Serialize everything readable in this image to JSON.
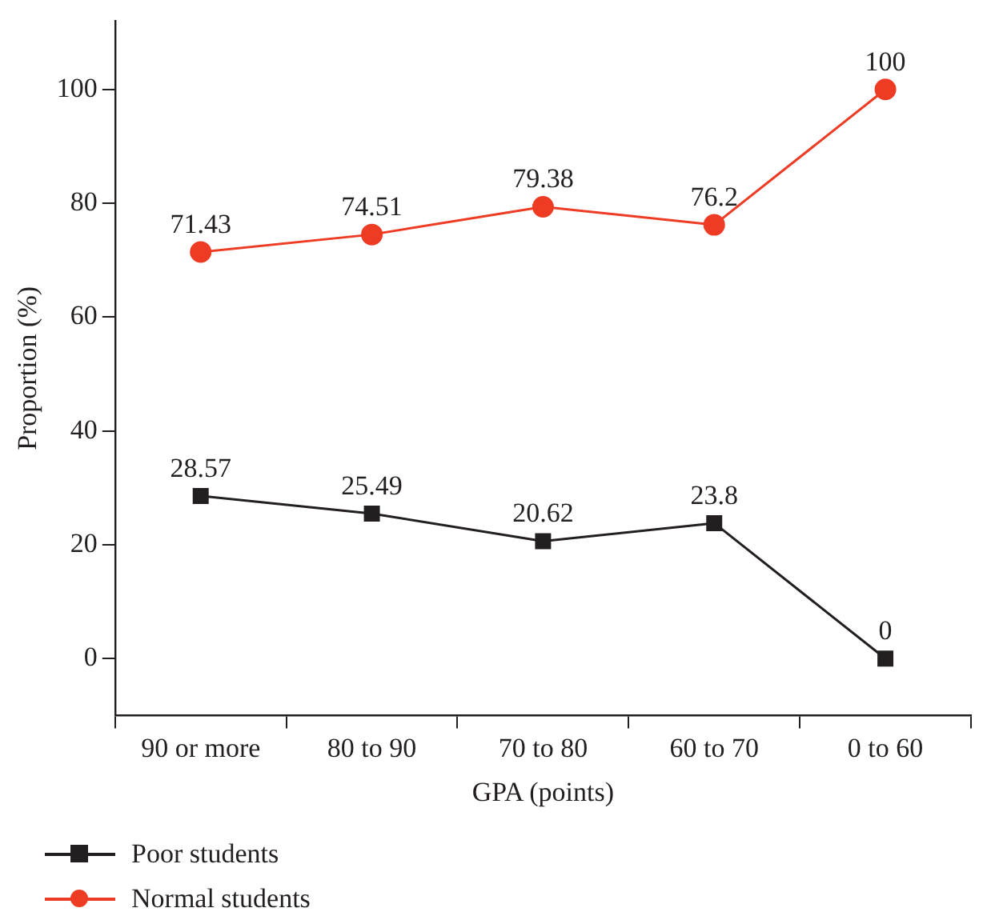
{
  "chart_data": {
    "type": "line",
    "xlabel": "GPA (points)",
    "ylabel": "Proportion (%)",
    "categories": [
      "90 or more",
      "80 to 90",
      "70 to 80",
      "60 to 70",
      "0 to 60"
    ],
    "series": [
      {
        "name": "Poor students",
        "color": "#231f20",
        "marker": "square",
        "values": [
          28.57,
          25.49,
          20.62,
          23.8,
          0
        ]
      },
      {
        "name": "Normal students",
        "color": "#ee3b24",
        "marker": "circle",
        "values": [
          71.43,
          74.51,
          79.38,
          76.2,
          100
        ]
      }
    ],
    "ylim": [
      -10,
      112
    ],
    "yticks": [
      0,
      20,
      40,
      60,
      80,
      100
    ],
    "grid": false,
    "legend": "bottom left",
    "data_labels": true
  }
}
